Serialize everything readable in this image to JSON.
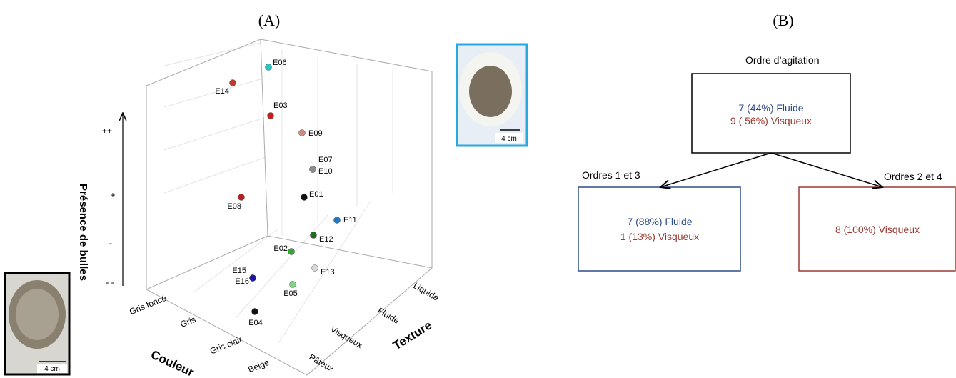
{
  "panel_a": {
    "title": "(A)",
    "z_axis": {
      "label": "Présence de bulles",
      "ticks": [
        "++",
        "+",
        "-",
        "- -"
      ]
    },
    "x_axis": {
      "label": "Couleur",
      "ticks": [
        "Gris foncé",
        "Gris",
        "Gris clair",
        "Beige"
      ]
    },
    "y_axis": {
      "label": "Texture",
      "ticks": [
        "Liquide",
        "Fluide",
        "Visqueux",
        "Pâteux"
      ]
    },
    "points": [
      {
        "label": "E06",
        "color": "#2cc3c3"
      },
      {
        "label": "E14",
        "color": "#c0392b"
      },
      {
        "label": "E03",
        "color": "#c81e1e"
      },
      {
        "label": "E09",
        "color": "#d08a80"
      },
      {
        "label": "E07",
        "color": "#8c8c8c"
      },
      {
        "label": "E10",
        "color": "#8c8c8c"
      },
      {
        "label": "E01",
        "color": "#111111"
      },
      {
        "label": "E11",
        "color": "#1f78c8"
      },
      {
        "label": "E08",
        "color": "#b22222"
      },
      {
        "label": "E12",
        "color": "#1e6e1e"
      },
      {
        "label": "E02",
        "color": "#2eaa2e"
      },
      {
        "label": "E13",
        "color": "#d8d8d8"
      },
      {
        "label": "E15",
        "color": "#1a1aa0"
      },
      {
        "label": "E16",
        "color": "#1a1aa0"
      },
      {
        "label": "E05",
        "color": "#7fd47f"
      },
      {
        "label": "E04",
        "color": "#111111"
      }
    ],
    "photo_top_scale": "4 cm",
    "photo_bottom_scale": "4 cm"
  },
  "panel_b": {
    "title": "(B)",
    "root": {
      "heading": "Ordre d’agitation",
      "lines": [
        "7 (44%) Fluide",
        "9 ( 56%) Visqueux"
      ]
    },
    "left": {
      "heading": "Ordres 1 et 3",
      "lines": [
        "7 (88%) Fluide",
        "1 (13%) Visqueux"
      ]
    },
    "right": {
      "heading": "Ordres 2 et 4",
      "lines": [
        "8 (100%) Visqueux"
      ]
    }
  }
}
